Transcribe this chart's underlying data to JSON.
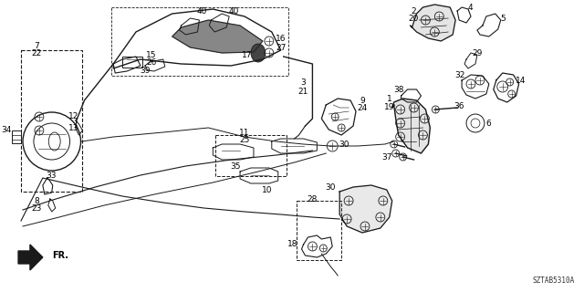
{
  "bg_color": "#f0f0f0",
  "line_color": "#1a1a1a",
  "text_color": "#000000",
  "diagram_code": "SZTAB5310A",
  "fig_width": 6.4,
  "fig_height": 3.2,
  "dpi": 100
}
